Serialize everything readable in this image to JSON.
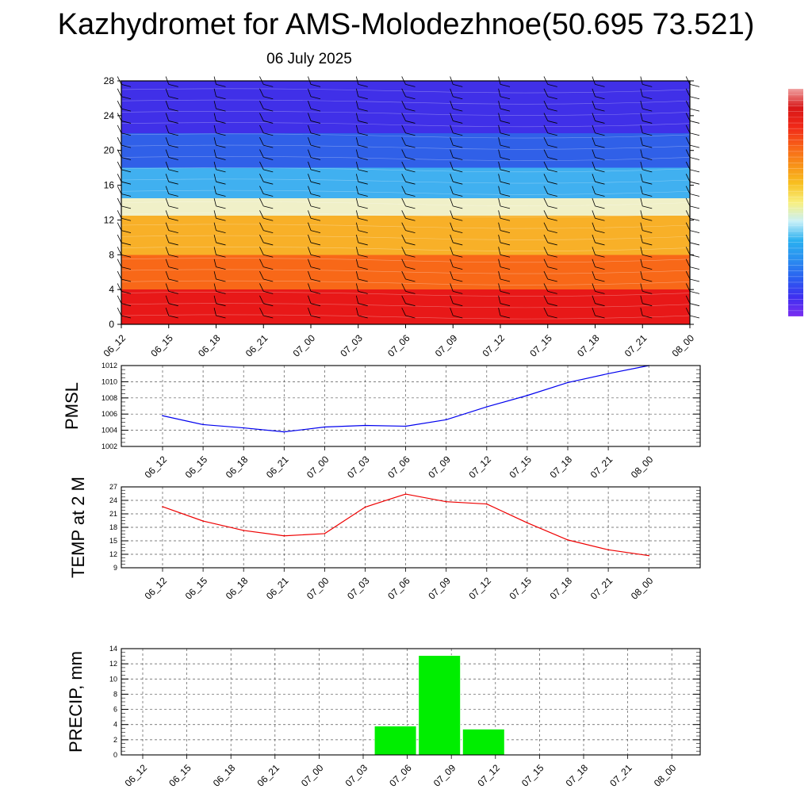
{
  "title": "Kazhydromet for AMS-Molodezhnoe(50.695 73.521)",
  "date": "06 July 2025",
  "chart_data": [
    {
      "type": "heatmap",
      "x_labels": [
        "06_12",
        "06_15",
        "06_18",
        "06_21",
        "07_00",
        "07_03",
        "07_06",
        "07_09",
        "07_12",
        "07_15",
        "07_18",
        "07_21",
        "08_00"
      ],
      "y_ticks": [
        0,
        4,
        8,
        12,
        16,
        20,
        24,
        28
      ],
      "ylim": [
        0,
        28
      ],
      "colorbar": [
        "#7b2ff0",
        "#3f2ff0",
        "#2a5ff0",
        "#2a8ff0",
        "#2ab0f0",
        "#c8f0f8",
        "#f8f080",
        "#f8c020",
        "#f89018",
        "#f86018",
        "#f02818",
        "#d81818",
        "#f0a0a0"
      ],
      "temperature_profile_description_bands": [
        {
          "level_from": 0,
          "level_to": 4,
          "color": "#e81818"
        },
        {
          "level_from": 4,
          "level_to": 8,
          "color": "#f86818"
        },
        {
          "level_from": 8,
          "level_to": 12.5,
          "color": "#f8b028"
        },
        {
          "level_from": 12.5,
          "level_to": 14.5,
          "color": "#f0f0c8"
        },
        {
          "level_from": 14.5,
          "level_to": 18,
          "color": "#40b0f0"
        },
        {
          "level_from": 18,
          "level_to": 22,
          "color": "#3060e8"
        },
        {
          "level_from": 22,
          "level_to": 28,
          "color": "#4030e8"
        }
      ]
    },
    {
      "type": "line",
      "ylabel": "PMSL",
      "x": [
        "06_12",
        "06_15",
        "06_18",
        "06_21",
        "07_00",
        "07_03",
        "07_06",
        "07_09",
        "07_12",
        "07_15",
        "07_18",
        "07_21",
        "08_00"
      ],
      "values": [
        1005.8,
        1004.7,
        1004.3,
        1003.8,
        1004.4,
        1004.6,
        1004.5,
        1005.3,
        1006.9,
        1008.3,
        1009.9,
        1011.0,
        1012.0
      ],
      "ylim": [
        1002,
        1012
      ],
      "y_ticks": [
        1002,
        1004,
        1006,
        1008,
        1010,
        1012
      ],
      "color": "#0000ee"
    },
    {
      "type": "line",
      "ylabel": "TEMP at 2 M",
      "x": [
        "06_12",
        "06_15",
        "06_18",
        "06_21",
        "07_00",
        "07_03",
        "07_06",
        "07_09",
        "07_12",
        "07_15",
        "07_18",
        "07_21",
        "08_00"
      ],
      "values": [
        22.6,
        19.4,
        17.3,
        16.1,
        16.6,
        22.5,
        25.4,
        23.7,
        23.2,
        19.0,
        15.2,
        13.0,
        11.7
      ],
      "ylim": [
        9,
        27
      ],
      "y_ticks": [
        9,
        12,
        15,
        18,
        21,
        24,
        27
      ],
      "color": "#ee0000"
    },
    {
      "type": "bar",
      "ylabel": "PRECIP, mm",
      "x": [
        "06_12",
        "06_15",
        "06_18",
        "06_21",
        "07_00",
        "07_03",
        "07_06",
        "07_09",
        "07_12",
        "07_15",
        "07_18",
        "07_21",
        "08_00"
      ],
      "values": [
        0,
        0,
        0,
        0,
        0,
        0,
        3.8,
        13.1,
        3.4,
        0,
        0,
        0,
        0
      ],
      "ylim": [
        0,
        14
      ],
      "y_ticks": [
        0,
        2,
        4,
        6,
        8,
        10,
        12,
        14
      ],
      "color": "#00ee00"
    }
  ]
}
